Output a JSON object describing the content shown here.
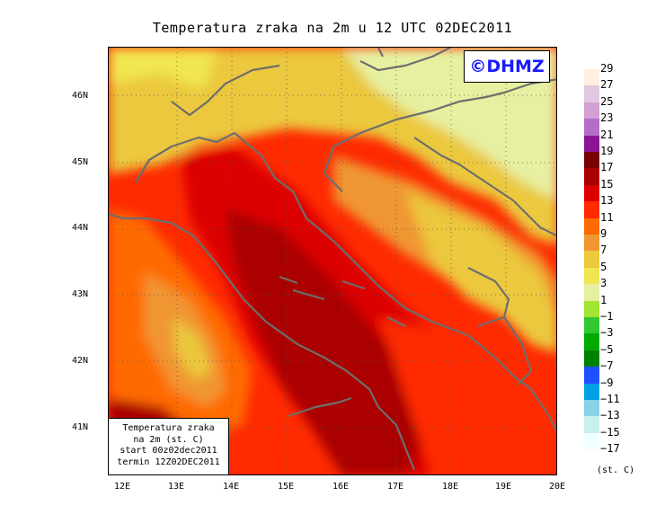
{
  "title": "Temperatura zraka na 2m u 12 UTC 02DEC2011",
  "logo": "©DHMZ",
  "info_box": {
    "line1": "Temperatura zraka",
    "line2": "na 2m (st. C)",
    "line3": "start 00z02dec2011",
    "line4": "termin 12Z02DEC2011"
  },
  "lat_labels": [
    "46N",
    "45N",
    "44N",
    "43N",
    "42N",
    "41N"
  ],
  "lon_labels": [
    "12E",
    "13E",
    "14E",
    "15E",
    "16E",
    "17E",
    "18E",
    "19E",
    "20E"
  ],
  "legend": {
    "labels": [
      "29",
      "27",
      "25",
      "23",
      "21",
      "19",
      "17",
      "15",
      "13",
      "11",
      "9",
      "7",
      "5",
      "3",
      "1",
      "−1",
      "−3",
      "−5",
      "−7",
      "−9",
      "−11",
      "−13",
      "−15",
      "−17"
    ],
    "colors": [
      "#fff0e0",
      "#e0c8e0",
      "#d2a0d2",
      "#b46ec8",
      "#8c1496",
      "#780000",
      "#aa0000",
      "#dc0000",
      "#ff2a00",
      "#ff6a00",
      "#f09632",
      "#ebc83c",
      "#f0e650",
      "#e6f0a0",
      "#a0e632",
      "#32c832",
      "#00aa00",
      "#008200",
      "#1e50ff",
      "#00a0e6",
      "#8cd2e6",
      "#c8f0f0",
      "#f0ffff"
    ],
    "unit": "(st. C)"
  }
}
